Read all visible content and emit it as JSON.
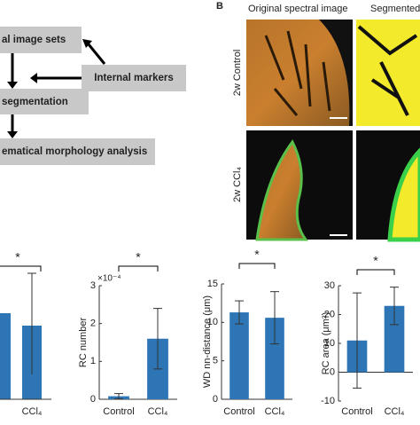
{
  "flowchart": {
    "boxes": [
      "al image sets",
      "Internal markers",
      "segmentation",
      "ematical morphology analysis"
    ]
  },
  "panel_b": {
    "label": "B",
    "columns": [
      "Original spectral image",
      "Segmented"
    ],
    "rows": [
      "2w Control",
      "2w CCl₄"
    ]
  },
  "cropped_panel": {
    "significance": "*",
    "category": "CCl₄"
  },
  "chart_data": [
    {
      "type": "bar",
      "y_label": "RC number",
      "y_exponent": "×10⁻⁴",
      "significance": "*",
      "categories": [
        "Control",
        "CCl₄"
      ],
      "values": [
        0.08,
        1.6
      ],
      "errors": [
        0.07,
        0.8
      ],
      "color": "#2e75b6",
      "ylim": [
        0,
        3
      ],
      "yticks": [
        0,
        1,
        2,
        3
      ]
    },
    {
      "type": "bar",
      "y_label": "WD nn-distance (μm)",
      "significance": "*",
      "categories": [
        "Control",
        "CCl₄"
      ],
      "values": [
        11.3,
        10.6
      ],
      "errors": [
        1.5,
        3.4
      ],
      "color": "#2e75b6",
      "ylim": [
        0,
        15
      ],
      "yticks": [
        0,
        5,
        10,
        15
      ]
    },
    {
      "type": "bar",
      "y_label": "RC area (μm²)",
      "significance": "*",
      "categories": [
        "Control",
        "CCl₄"
      ],
      "values": [
        11,
        23
      ],
      "errors": [
        16.5,
        6.5
      ],
      "color": "#2e75b6",
      "ylim": [
        -10,
        30
      ],
      "yticks": [
        -10,
        0,
        10,
        20,
        30
      ]
    }
  ]
}
